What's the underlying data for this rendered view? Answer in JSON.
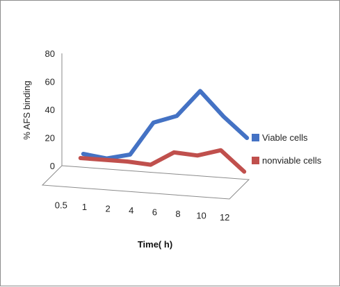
{
  "chart_data": {
    "type": "line",
    "title": "",
    "xlabel": "Time( h)",
    "ylabel": "% AFS binding",
    "categories": [
      "0.5",
      "1",
      "2",
      "4",
      "6",
      "8",
      "10",
      "12"
    ],
    "ylim": [
      0,
      80
    ],
    "yticks": [
      "0",
      "20",
      "40",
      "60",
      "80"
    ],
    "series": [
      {
        "name": "Viable cells",
        "color": "#4472C4",
        "values": [
          9,
          7,
          11,
          35,
          41,
          60,
          43,
          29
        ]
      },
      {
        "name": "nonviable cells",
        "color": "#C0504D",
        "values": [
          9,
          9,
          9,
          8,
          18,
          17,
          22,
          8
        ]
      }
    ],
    "legend_position": "right",
    "style": "3d-line"
  }
}
